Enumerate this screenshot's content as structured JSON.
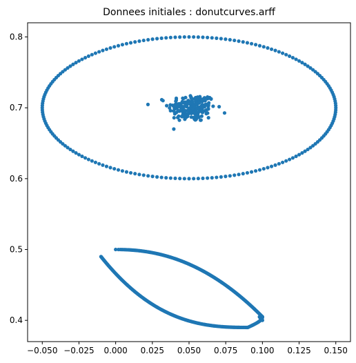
{
  "chart_data": {
    "type": "scatter",
    "title": "Donnees initiales : donutcurves.arff",
    "xlabel": "",
    "ylabel": "",
    "xlim": [
      -0.06,
      0.16
    ],
    "ylim": [
      0.37,
      0.82
    ],
    "xticks": [
      -0.05,
      -0.025,
      0.0,
      0.025,
      0.05,
      0.075,
      0.1,
      0.125,
      0.15
    ],
    "xtick_labels": [
      "−0.050",
      "−0.025",
      "0.000",
      "0.025",
      "0.050",
      "0.075",
      "0.100",
      "0.125",
      "0.150"
    ],
    "yticks": [
      0.4,
      0.5,
      0.6,
      0.7,
      0.8
    ],
    "ytick_labels": [
      "0.4",
      "0.5",
      "0.6",
      "0.7",
      "0.8"
    ],
    "grid": false,
    "color": "#1f77b4",
    "series": [
      {
        "shape": "ellipse",
        "center": [
          0.05,
          0.7
        ],
        "radii": [
          0.1,
          0.1
        ],
        "count": 200
      },
      {
        "shape": "gaussian-cluster",
        "center": [
          0.052,
          0.7
        ],
        "spread": [
          0.008,
          0.01
        ],
        "x_range": [
          0.022,
          0.075
        ],
        "y_range": [
          0.67,
          0.73
        ],
        "count": 200
      },
      {
        "shape": "curve",
        "label_points": [
          [
            0.0,
            0.5
          ],
          [
            0.05,
            0.482
          ],
          [
            0.1,
            0.405
          ]
        ],
        "count": 200
      },
      {
        "shape": "curve",
        "label_points": [
          [
            -0.01,
            0.49
          ],
          [
            0.03,
            0.4
          ],
          [
            0.09,
            0.39
          ]
        ],
        "count": 200
      }
    ]
  }
}
